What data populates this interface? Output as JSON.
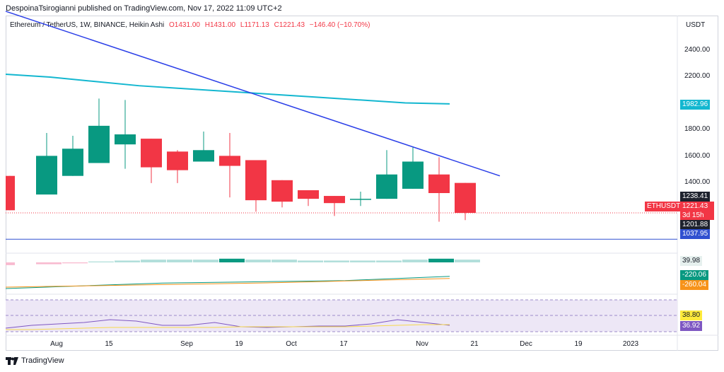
{
  "header": {
    "publisher": "DespoinaTsirogianni published on TradingView.com, Nov 17, 2022 11:09 UTC+2"
  },
  "legend": {
    "symbol": "Ethereum / TetherUS, 1W, BINANCE, Heikin Ashi",
    "o": "O1431.00",
    "h": "H1431.00",
    "l": "L1171.13",
    "c": "C1221.43",
    "change": "−146.40 (−10.70%)"
  },
  "price_axis": {
    "unit": "USDT",
    "ticks": [
      "2400.00",
      "2200.00",
      "1800.00",
      "1600.00",
      "1400.00"
    ],
    "tags": {
      "ma": "1982.96",
      "upper": "1238.41",
      "symbol": "ETHUSDT",
      "last": "1221.43",
      "countdown": "3d 15h",
      "lower": "1201.88",
      "support": "1037.95"
    }
  },
  "indicators": {
    "histogram_value": "39.98",
    "line1_value": "-220.06",
    "line2_value": "-260.04",
    "rsi_value": "36.92",
    "rsi_ma_value": "38.80"
  },
  "time_axis": [
    "Aug",
    "15",
    "Sep",
    "19",
    "Oct",
    "17",
    "Nov",
    "21",
    "Dec",
    "19",
    "2023"
  ],
  "footer": {
    "brand": "TradingView"
  },
  "colors": {
    "up": "#089981",
    "down": "#f23645",
    "trend": "#2a3ee8",
    "ma": "#13b7d0",
    "support": "#3050d0"
  },
  "chart_data": {
    "type": "candlestick",
    "timeframe": "1W",
    "candles": [
      {
        "o": 1480,
        "c": 1240,
        "h": 1480,
        "l": 1240
      },
      {
        "o": 1350,
        "c": 1620,
        "h": 1780,
        "l": 1350
      },
      {
        "o": 1480,
        "c": 1670,
        "h": 1760,
        "l": 1480
      },
      {
        "o": 1570,
        "c": 1830,
        "h": 2020,
        "l": 1570
      },
      {
        "o": 1700,
        "c": 1770,
        "h": 2010,
        "l": 1530
      },
      {
        "o": 1740,
        "c": 1540,
        "h": 1740,
        "l": 1430
      },
      {
        "o": 1650,
        "c": 1520,
        "h": 1660,
        "l": 1430
      },
      {
        "o": 1580,
        "c": 1660,
        "h": 1790,
        "l": 1580
      },
      {
        "o": 1620,
        "c": 1550,
        "h": 1780,
        "l": 1330
      },
      {
        "o": 1590,
        "c": 1310,
        "h": 1590,
        "l": 1230
      },
      {
        "o": 1450,
        "c": 1300,
        "h": 1450,
        "l": 1260
      },
      {
        "o": 1380,
        "c": 1320,
        "h": 1380,
        "l": 1270
      },
      {
        "o": 1340,
        "c": 1290,
        "h": 1340,
        "l": 1200
      },
      {
        "o": 1320,
        "c": 1320,
        "h": 1370,
        "l": 1270
      },
      {
        "o": 1320,
        "c": 1490,
        "h": 1660,
        "l": 1320
      },
      {
        "o": 1390,
        "c": 1580,
        "h": 1680,
        "l": 1390
      },
      {
        "o": 1490,
        "c": 1360,
        "h": 1610,
        "l": 1160
      },
      {
        "o": 1431,
        "c": 1221.43,
        "h": 1431,
        "l": 1171.13
      }
    ],
    "ylim": [
      1000,
      2500
    ],
    "ma_line": [
      2190,
      2170,
      2140,
      2110,
      2090,
      2070,
      2050,
      2030,
      2010,
      1990,
      1982.96
    ],
    "trendline": {
      "start": 2630,
      "end": 1480
    },
    "support_level": 1037.95
  }
}
